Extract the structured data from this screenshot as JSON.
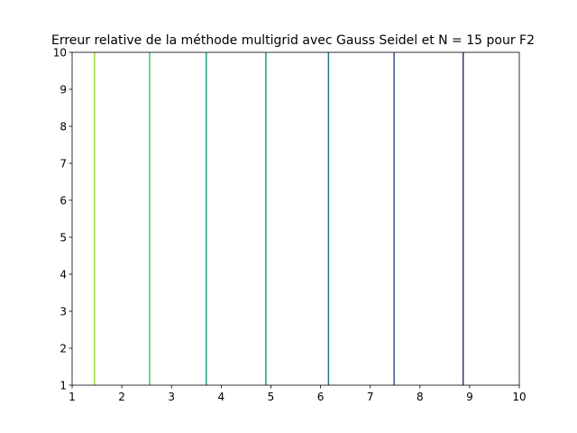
{
  "chart_data": {
    "type": "line",
    "title": "Erreur relative de la méthode multigrid avec Gauss Seidel et N = 15 pour F2",
    "xlabel": "",
    "ylabel": "",
    "xlim": [
      1,
      10
    ],
    "ylim": [
      1,
      10
    ],
    "x_ticks": [
      "1",
      "2",
      "3",
      "4",
      "5",
      "6",
      "7",
      "8",
      "9",
      "10"
    ],
    "y_ticks": [
      "1",
      "2",
      "3",
      "4",
      "5",
      "6",
      "7",
      "8",
      "9",
      "10"
    ],
    "grid": false,
    "legend": "none",
    "series": [
      {
        "x": 1.45,
        "color": "#a0da39"
      },
      {
        "x": 2.56,
        "color": "#4ac16d"
      },
      {
        "x": 3.7,
        "color": "#1fa187"
      },
      {
        "x": 4.9,
        "color": "#1f9a8a"
      },
      {
        "x": 6.16,
        "color": "#2c728e"
      },
      {
        "x": 7.48,
        "color": "#3b528b"
      },
      {
        "x": 8.87,
        "color": "#472d7b"
      }
    ]
  }
}
